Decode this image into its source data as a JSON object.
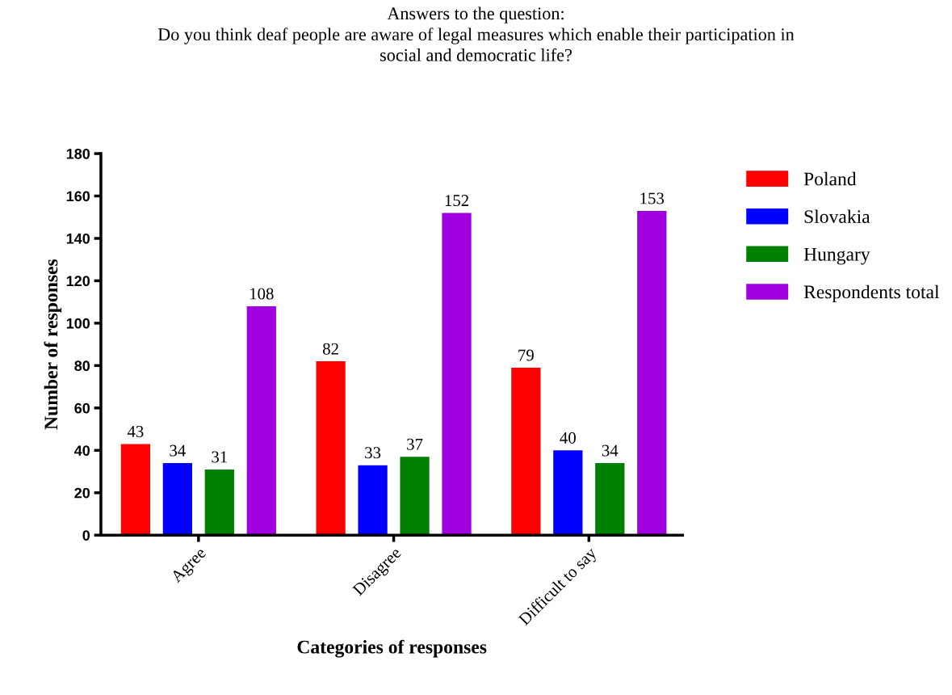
{
  "chart_data": {
    "type": "bar",
    "title": "Answers to the question:\nDo you think deaf people are aware of legal measures which enable their participation in\nsocial and democratic life?",
    "xlabel": "Categories of responses",
    "ylabel": "Number of responses",
    "categories": [
      "Agree",
      "Disagree",
      "Difficult to say"
    ],
    "series": [
      {
        "name": "Poland",
        "color": "#ff0000",
        "values": [
          43,
          82,
          79
        ]
      },
      {
        "name": "Slovakia",
        "color": "#0000ff",
        "values": [
          34,
          33,
          40
        ]
      },
      {
        "name": "Hungary",
        "color": "#008000",
        "values": [
          31,
          37,
          34
        ]
      },
      {
        "name": "Respondents total",
        "color": "#a000e0",
        "values": [
          108,
          152,
          153
        ]
      }
    ],
    "ylim": [
      0,
      180
    ],
    "yticks": [
      0,
      20,
      40,
      60,
      80,
      100,
      120,
      140,
      160,
      180
    ],
    "data_labels": true,
    "grid": false,
    "legend": "top right"
  }
}
